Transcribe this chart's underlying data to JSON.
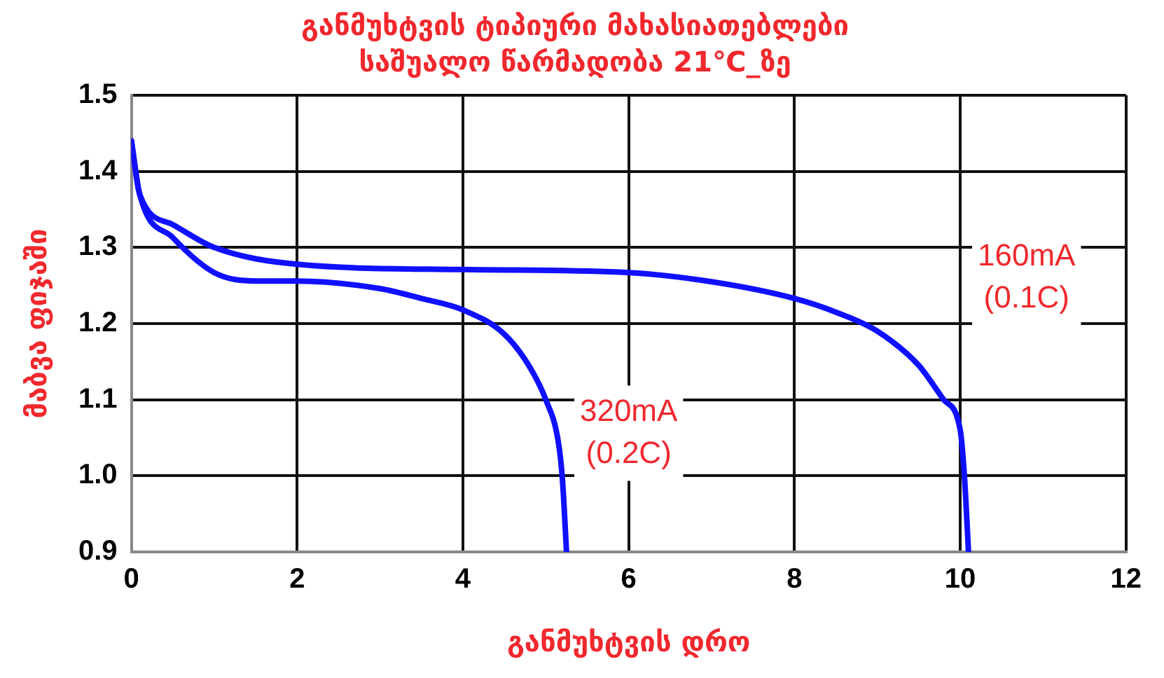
{
  "chart_data": {
    "type": "line",
    "title": "განმუხტვის ტიპიური მახასიათებლები",
    "subtitle": "საშუალო წარმადობა 21℃_ზე",
    "xlabel": "განმუხტვის დრო",
    "ylabel": "მაბვა ფიჯაში",
    "xlim": [
      0,
      12
    ],
    "xticks": [
      0,
      2,
      4,
      6,
      8,
      10,
      12
    ],
    "ylim": [
      0.9,
      1.5
    ],
    "yticks": [
      {
        "value": 0.9,
        "label": "0.9"
      },
      {
        "value": 1.0,
        "label": "1.0"
      },
      {
        "value": 1.1,
        "label": "1.1"
      },
      {
        "value": 1.2,
        "label": "1.2"
      },
      {
        "value": 1.3,
        "label": "1.3"
      },
      {
        "value": 1.4,
        "label": "1.4"
      },
      {
        "value": 1.5,
        "label": "1.5"
      }
    ],
    "grid": true,
    "marker": "none",
    "line_style": "solid",
    "series": [
      {
        "color": "#1010ff",
        "x": [
          0,
          0.1,
          0.5,
          1,
          2,
          4,
          6,
          7,
          8,
          8.5,
          9,
          9.5,
          9.8,
          10,
          10.05,
          10.1
        ],
        "values": [
          1.44,
          1.37,
          1.33,
          1.3,
          1.278,
          1.271,
          1.267,
          1.255,
          1.233,
          1.215,
          1.19,
          1.145,
          1.1,
          1.06,
          1.0,
          0.9
        ]
      },
      {
        "color": "#1010ff",
        "x": [
          0,
          0.1,
          0.5,
          1,
          1.5,
          2,
          3,
          3.5,
          4,
          4.5,
          4.8,
          5,
          5.15,
          5.2,
          5.25
        ],
        "values": [
          1.44,
          1.37,
          1.313,
          1.267,
          1.256,
          1.256,
          1.246,
          1.233,
          1.218,
          1.186,
          1.144,
          1.1,
          1.045,
          0.996,
          0.9
        ]
      }
    ],
    "annotations": [
      "160mA (0.1C)",
      "320mA (0.2C)"
    ]
  }
}
